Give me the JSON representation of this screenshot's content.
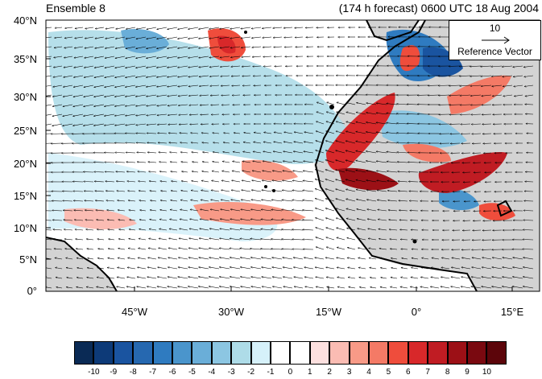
{
  "header": {
    "ensemble_label": "Ensemble 8",
    "forecast_label": "(174 h forecast) 0600 UTC 18 Aug 2004"
  },
  "map": {
    "lat_labels": [
      "40°N",
      "35°N",
      "30°N",
      "25°N",
      "20°N",
      "15°N",
      "10°N",
      "5°N",
      "0°"
    ],
    "lon_labels": [
      "45°W",
      "30°W",
      "15°W",
      "0°",
      "15°E"
    ],
    "reference_vector": {
      "magnitude": "10",
      "label": "Reference Vector"
    },
    "land_color": "#d3d3d3",
    "coastline_color": "#000000"
  },
  "colorbar": {
    "labels": [
      "-10",
      "-9",
      "-8",
      "-7",
      "-6",
      "-5",
      "-4",
      "-3",
      "-2",
      "-1",
      "0",
      "1",
      "2",
      "3",
      "4",
      "5",
      "6",
      "7",
      "8",
      "9",
      "10"
    ],
    "colors": [
      "#0a2a55",
      "#0d3a78",
      "#1a54a0",
      "#2668b0",
      "#2f7bc0",
      "#4a95cc",
      "#6aaed8",
      "#8cc6e2",
      "#aedce8",
      "#d6f1fa",
      "#ffffff",
      "#ffffff",
      "#fde0df",
      "#fbbcb3",
      "#f89a87",
      "#f47a66",
      "#ef4d3c",
      "#d8282a",
      "#c01c23",
      "#9c1016",
      "#7a0910",
      "#5c050a"
    ]
  }
}
